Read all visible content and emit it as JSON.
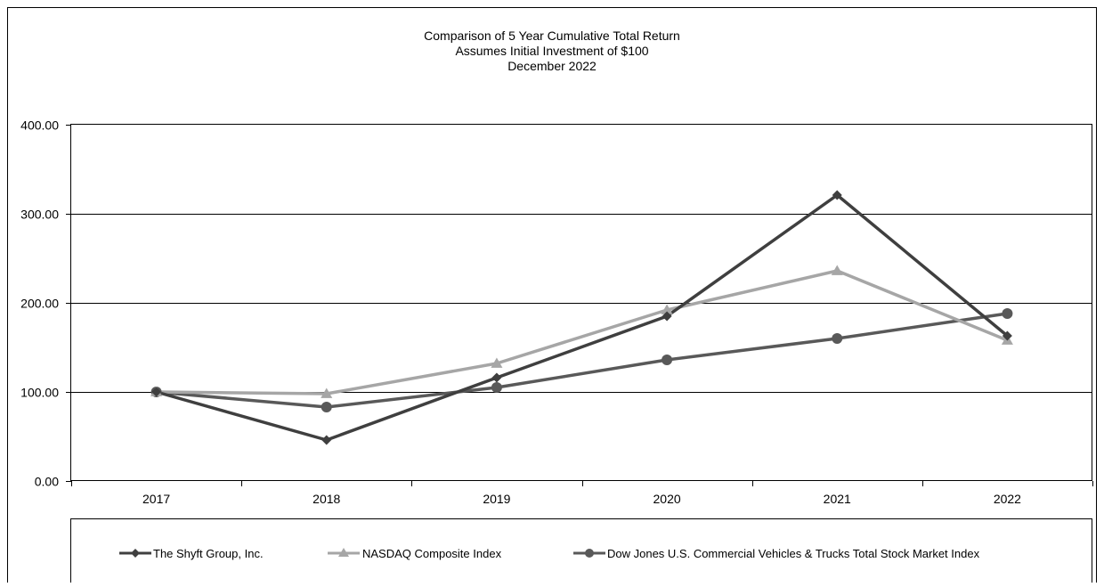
{
  "chart_data": {
    "type": "line",
    "title_lines": [
      "Comparison  of 5 Year Cumulative  Total Return",
      "Assumes Initial Investment  of $100",
      "December  2022"
    ],
    "xlabel": "",
    "ylabel": "",
    "categories": [
      "2017",
      "2018",
      "2019",
      "2020",
      "2021",
      "2022"
    ],
    "y_tick_labels": [
      "0.00",
      "100.00",
      "200.00",
      "300.00",
      "400.00"
    ],
    "y_tick_values": [
      0,
      100,
      200,
      300,
      400
    ],
    "ylim": [
      0,
      400
    ],
    "grid": true,
    "legend_position": "bottom",
    "series": [
      {
        "name": "The Shyft Group, Inc.",
        "values": [
          100,
          46,
          116,
          185,
          321,
          163
        ],
        "color": "#3f3f3f",
        "marker": "diamond"
      },
      {
        "name": "NASDAQ Composite Index",
        "values": [
          100,
          98,
          132,
          192,
          236,
          158
        ],
        "color": "#a6a6a6",
        "marker": "triangle"
      },
      {
        "name": "Dow Jones U.S. Commercial Vehicles & Trucks Total Stock Market Index",
        "values": [
          100,
          83,
          105,
          136,
          160,
          188
        ],
        "color": "#595959",
        "marker": "circle"
      }
    ]
  }
}
